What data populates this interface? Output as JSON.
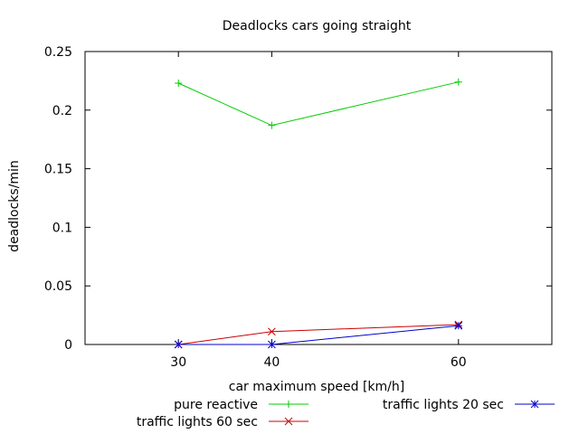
{
  "chart_data": {
    "type": "line",
    "title": "Deadlocks cars going straight",
    "xlabel": "car maximum speed [km/h]",
    "ylabel": "deadlocks/min",
    "x": [
      30,
      40,
      60
    ],
    "xlim": [
      20,
      70
    ],
    "ylim": [
      0,
      0.25
    ],
    "xticks": [
      "30",
      "40",
      "60"
    ],
    "yticks": [
      "0",
      "0.05",
      "0.1",
      "0.15",
      "0.2",
      "0.25"
    ],
    "ytick_values": [
      0,
      0.05,
      0.1,
      0.15,
      0.2,
      0.25
    ],
    "grid": false,
    "legend_position": "bottom",
    "series": [
      {
        "name": "pure reactive",
        "values": [
          0.223,
          0.187,
          0.224
        ],
        "color": "#00cc00",
        "marker": "plus"
      },
      {
        "name": "traffic lights 60 sec",
        "values": [
          0.0,
          0.011,
          0.017
        ],
        "color": "#cc0000",
        "marker": "cross"
      },
      {
        "name": "traffic lights 20 sec",
        "values": [
          0.0,
          0.0,
          0.016
        ],
        "color": "#0000cc",
        "marker": "star"
      }
    ]
  }
}
